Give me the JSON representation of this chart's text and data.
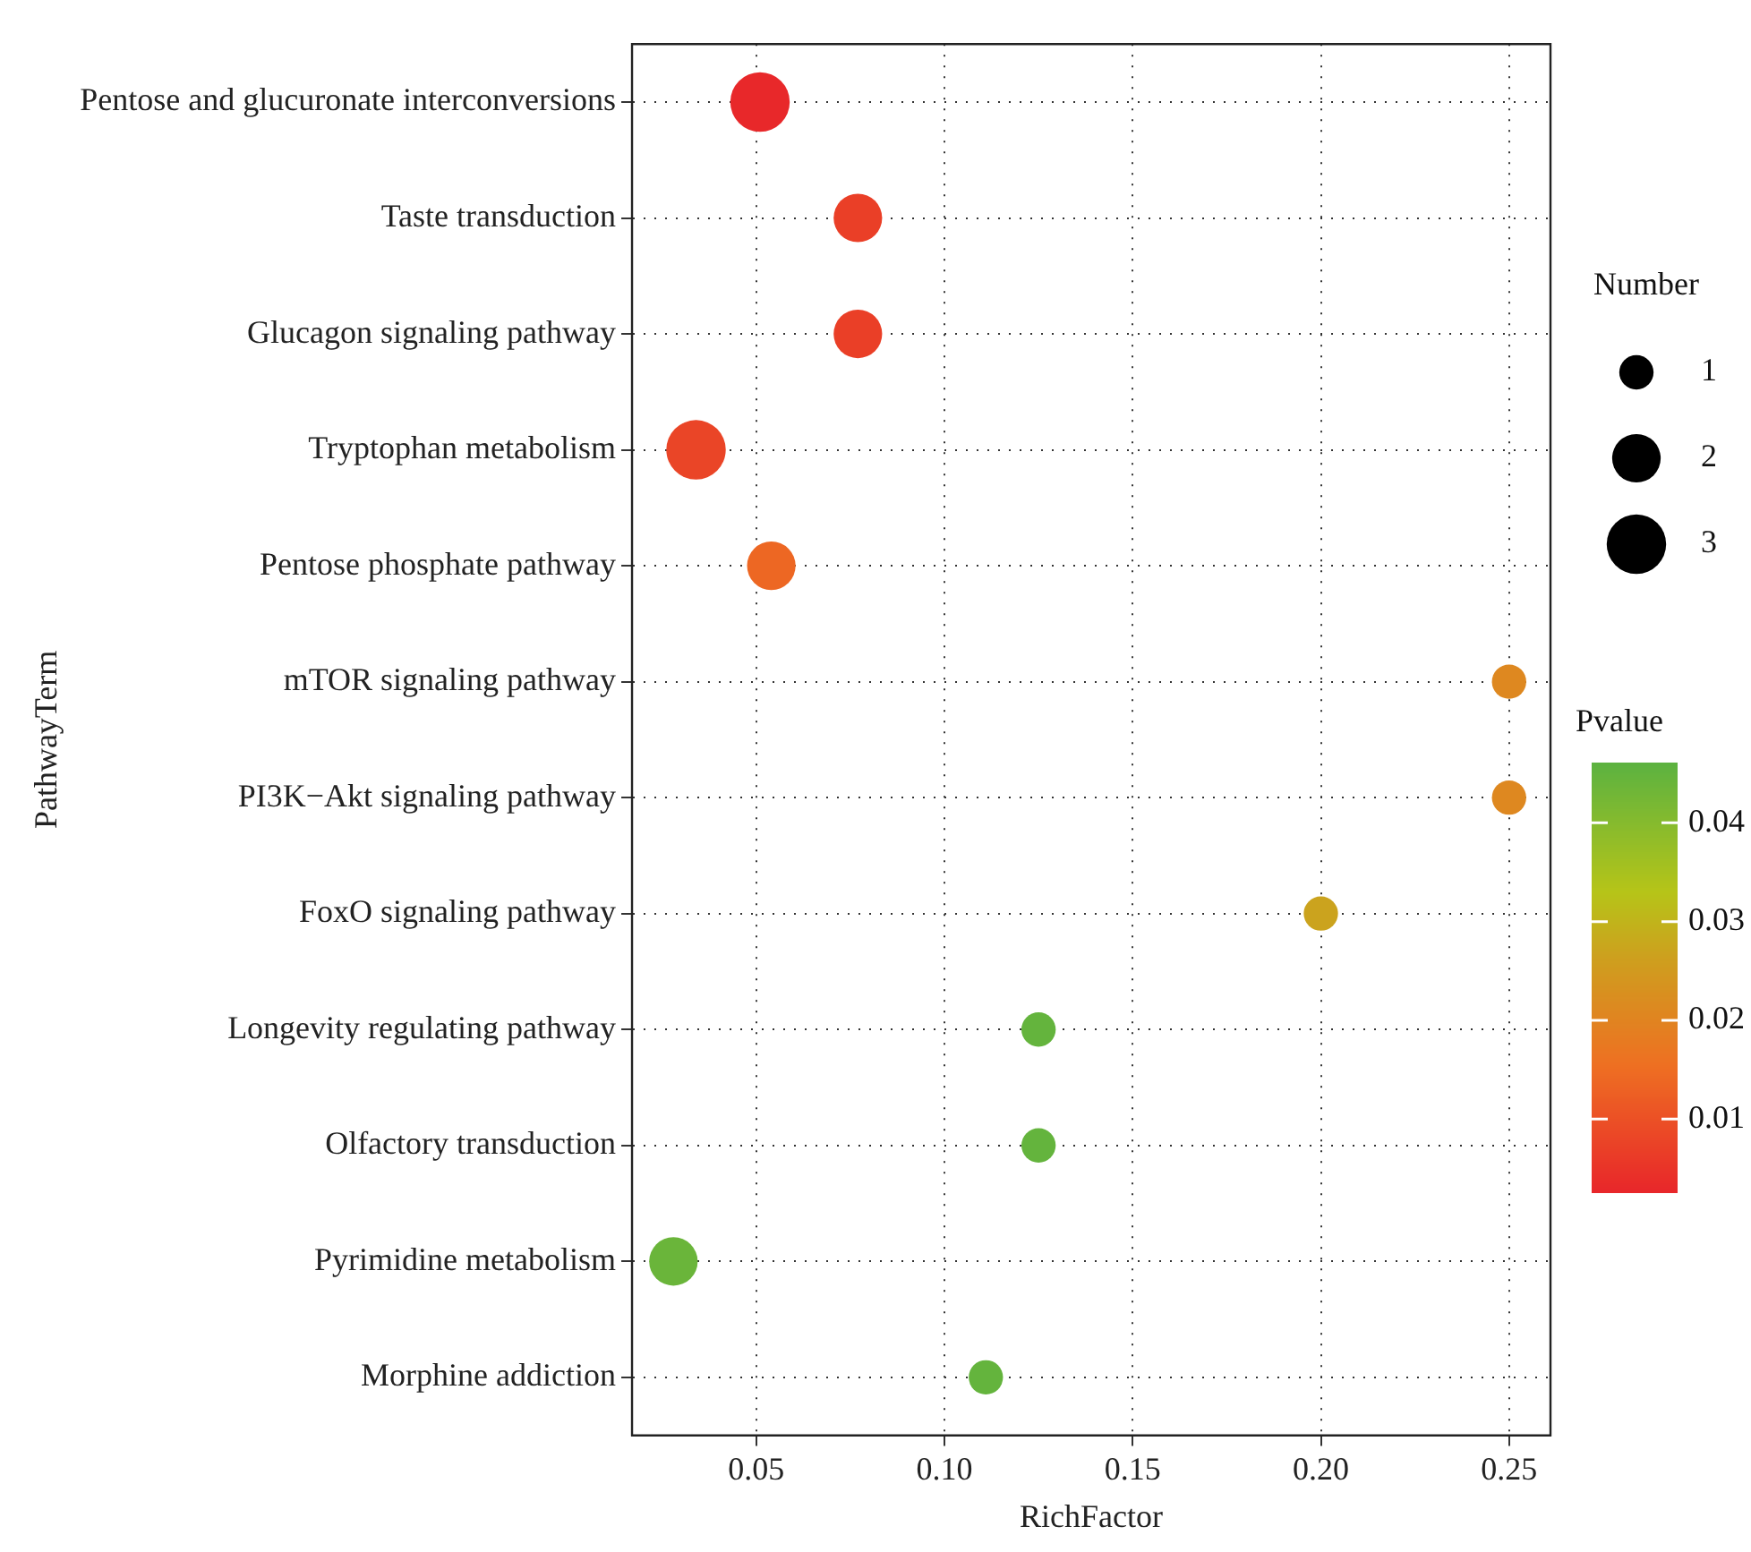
{
  "chart_data": {
    "type": "bubble",
    "xlabel": "RichFactor",
    "ylabel": "PathwayTerm",
    "legend_title": "Number",
    "clabel": "Pvalue",
    "categories": [
      "Pentose and glucuronate interconversions",
      "Taste transduction",
      "Glucagon signaling pathway",
      "Tryptophan metabolism",
      "Pentose phosphate pathway",
      "mTOR signaling pathway",
      "PI3K−Akt signaling pathway",
      "FoxO signaling pathway",
      "Longevity regulating pathway",
      "Olfactory transduction",
      "Pyrimidine metabolism",
      "Morphine addiction"
    ],
    "values": [
      0.051,
      0.077,
      0.077,
      0.034,
      0.054,
      0.25,
      0.25,
      0.2,
      0.125,
      0.125,
      0.028,
      0.111
    ],
    "sizes": [
      3,
      2,
      2,
      3,
      2,
      1,
      1,
      1,
      1,
      1,
      2,
      1
    ],
    "cvalues": [
      0.003,
      0.007,
      0.007,
      0.008,
      0.014,
      0.021,
      0.021,
      0.027,
      0.045,
      0.045,
      0.044,
      0.045
    ],
    "size_legend": [
      1,
      2,
      3
    ],
    "orientation": "horizontal",
    "xlim": [
      0.017,
      0.261
    ],
    "xticks": [
      {
        "value": 0.05,
        "label": "0.05"
      },
      {
        "value": 0.1,
        "label": "0.10"
      },
      {
        "value": 0.15,
        "label": "0.15"
      },
      {
        "value": 0.2,
        "label": "0.20"
      },
      {
        "value": 0.25,
        "label": "0.25"
      }
    ],
    "clim": [
      0.0026,
      0.0461
    ],
    "cticks": [
      0.01,
      0.02,
      0.03,
      0.04
    ],
    "grid": true
  }
}
